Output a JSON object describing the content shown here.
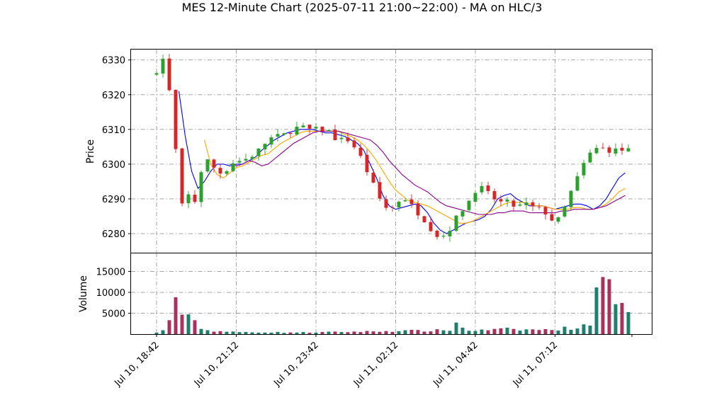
{
  "chart_data": {
    "type": "candlestick",
    "title": "MES 12-Minute Chart (2025-07-11 21:00~22:00) - MA on HLC/3",
    "price_panel": {
      "ylabel": "Price",
      "yticks": [
        6280,
        6290,
        6300,
        6310,
        6320,
        6330
      ],
      "ylim": [
        6274.5,
        6333
      ],
      "up_color": "#2ca02c",
      "down_color": "#d62728",
      "grid": true
    },
    "volume_panel": {
      "ylabel": "Volume",
      "yticks": [
        5000,
        10000,
        15000
      ],
      "ylim": [
        0,
        19500
      ],
      "up_color": "#1f7f6f",
      "down_color": "#a8325e"
    },
    "x_ticks": [
      "Jul 10, 18:42",
      "Jul 10, 21:12",
      "Jul 10, 23:42",
      "Jul 11, 02:12",
      "Jul 11, 04:42",
      "Jul 11, 07:12"
    ],
    "x_tick_bar_index": [
      0,
      12.5,
      25,
      37.5,
      50,
      62.5
    ],
    "bar_count": 75,
    "moving_averages": [
      {
        "color": "#0000ee",
        "points": [
          [
            3.5,
            6321
          ],
          [
            4.5,
            6308
          ],
          [
            5.5,
            6298
          ],
          [
            6.5,
            6293
          ],
          [
            7.5,
            6295
          ],
          [
            8.5,
            6298
          ],
          [
            9.5,
            6300
          ],
          [
            10.5,
            6300
          ],
          [
            11.5,
            6299.5
          ],
          [
            12.5,
            6300
          ],
          [
            13.5,
            6300
          ],
          [
            14.5,
            6301
          ],
          [
            15.5,
            6302
          ],
          [
            16.5,
            6304
          ],
          [
            17.5,
            6305.5
          ],
          [
            18.5,
            6307
          ],
          [
            19.5,
            6308
          ],
          [
            20.5,
            6309
          ],
          [
            21.5,
            6309.5
          ],
          [
            22.5,
            6310
          ],
          [
            23.5,
            6310
          ],
          [
            24.5,
            6310
          ],
          [
            25.5,
            6309.5
          ],
          [
            26.5,
            6309
          ],
          [
            27.5,
            6309
          ],
          [
            28.5,
            6308.5
          ],
          [
            29.5,
            6308
          ],
          [
            30.5,
            6307
          ],
          [
            31.5,
            6306
          ],
          [
            32.5,
            6304
          ],
          [
            33.5,
            6300
          ],
          [
            34.5,
            6296
          ],
          [
            35.5,
            6291
          ],
          [
            36.5,
            6288
          ],
          [
            37.5,
            6287
          ],
          [
            38.5,
            6287.5
          ],
          [
            39.5,
            6288
          ],
          [
            40.5,
            6288.5
          ],
          [
            41.5,
            6288
          ],
          [
            42.5,
            6286
          ],
          [
            43.5,
            6283
          ],
          [
            44.5,
            6281
          ],
          [
            45.5,
            6280
          ],
          [
            46.5,
            6281
          ],
          [
            47.5,
            6282
          ],
          [
            48.5,
            6283
          ],
          [
            49.5,
            6283.5
          ],
          [
            50.5,
            6284
          ],
          [
            51.5,
            6285
          ],
          [
            52.5,
            6287
          ],
          [
            53.5,
            6290
          ],
          [
            54.5,
            6291
          ],
          [
            55.5,
            6291.5
          ],
          [
            56.5,
            6290
          ],
          [
            57.5,
            6289
          ],
          [
            58.5,
            6288
          ],
          [
            59.5,
            6288
          ],
          [
            60.5,
            6288
          ],
          [
            61.5,
            6287.5
          ],
          [
            62.5,
            6287
          ],
          [
            63.5,
            6287.5
          ],
          [
            64.5,
            6288
          ],
          [
            65.5,
            6288.5
          ],
          [
            66.5,
            6288.5
          ],
          [
            67.5,
            6288
          ],
          [
            68.5,
            6287
          ],
          [
            69.5,
            6288
          ],
          [
            70.5,
            6290
          ],
          [
            71.5,
            6293
          ],
          [
            72.5,
            6296
          ],
          [
            73.5,
            6297.5
          ]
        ]
      },
      {
        "color": "#ffa500",
        "points": [
          [
            7.5,
            6307
          ],
          [
            8.5,
            6300
          ],
          [
            9.5,
            6297
          ],
          [
            10.5,
            6296
          ],
          [
            11.5,
            6297.5
          ],
          [
            12.5,
            6299
          ],
          [
            13.5,
            6299.5
          ],
          [
            14.5,
            6300.5
          ],
          [
            15.5,
            6301.5
          ],
          [
            16.5,
            6302.5
          ],
          [
            17.5,
            6303
          ],
          [
            18.5,
            6304.5
          ],
          [
            19.5,
            6306
          ],
          [
            20.5,
            6307
          ],
          [
            21.5,
            6308
          ],
          [
            22.5,
            6309
          ],
          [
            23.5,
            6309.5
          ],
          [
            24.5,
            6309.5
          ],
          [
            25.5,
            6309.5
          ],
          [
            26.5,
            6309.5
          ],
          [
            27.5,
            6309.5
          ],
          [
            28.5,
            6309.5
          ],
          [
            29.5,
            6308.5
          ],
          [
            30.5,
            6308
          ],
          [
            31.5,
            6307
          ],
          [
            32.5,
            6305.5
          ],
          [
            33.5,
            6303.5
          ],
          [
            34.5,
            6301
          ],
          [
            35.5,
            6298
          ],
          [
            36.5,
            6295
          ],
          [
            37.5,
            6292.5
          ],
          [
            38.5,
            6291
          ],
          [
            39.5,
            6289.5
          ],
          [
            40.5,
            6289
          ],
          [
            41.5,
            6288.5
          ],
          [
            42.5,
            6288
          ],
          [
            43.5,
            6287
          ],
          [
            44.5,
            6286
          ],
          [
            45.5,
            6285
          ],
          [
            46.5,
            6284
          ],
          [
            47.5,
            6283
          ],
          [
            48.5,
            6283
          ],
          [
            49.5,
            6283.5
          ],
          [
            50.5,
            6284.5
          ],
          [
            51.5,
            6285.5
          ],
          [
            52.5,
            6286.5
          ],
          [
            53.5,
            6287.5
          ],
          [
            54.5,
            6288.5
          ],
          [
            55.5,
            6289
          ],
          [
            56.5,
            6289
          ],
          [
            57.5,
            6289
          ],
          [
            58.5,
            6288.5
          ],
          [
            59.5,
            6288
          ],
          [
            60.5,
            6288
          ],
          [
            61.5,
            6287.5
          ],
          [
            62.5,
            6287
          ],
          [
            63.5,
            6287
          ],
          [
            64.5,
            6287
          ],
          [
            65.5,
            6287.5
          ],
          [
            66.5,
            6287.5
          ],
          [
            67.5,
            6287
          ],
          [
            68.5,
            6287
          ],
          [
            69.5,
            6287.5
          ],
          [
            70.5,
            6288.5
          ],
          [
            71.5,
            6290
          ],
          [
            72.5,
            6292
          ],
          [
            73.5,
            6293
          ]
        ]
      },
      {
        "color": "#8b008b",
        "points": [
          [
            11.5,
            6300
          ],
          [
            12.5,
            6299.5
          ],
          [
            13.5,
            6300
          ],
          [
            14.5,
            6301
          ],
          [
            15.5,
            6300.5
          ],
          [
            16.5,
            6299.5
          ],
          [
            17.5,
            6300
          ],
          [
            18.5,
            6301.5
          ],
          [
            19.5,
            6303
          ],
          [
            20.5,
            6304.5
          ],
          [
            21.5,
            6306
          ],
          [
            22.5,
            6307
          ],
          [
            23.5,
            6308
          ],
          [
            24.5,
            6309
          ],
          [
            25.5,
            6309.5
          ],
          [
            26.5,
            6309.5
          ],
          [
            27.5,
            6309.5
          ],
          [
            28.5,
            6309.5
          ],
          [
            29.5,
            6309
          ],
          [
            30.5,
            6308.5
          ],
          [
            31.5,
            6308
          ],
          [
            32.5,
            6307.5
          ],
          [
            33.5,
            6307
          ],
          [
            34.5,
            6305.5
          ],
          [
            35.5,
            6303.5
          ],
          [
            36.5,
            6301
          ],
          [
            37.5,
            6299
          ],
          [
            38.5,
            6297
          ],
          [
            39.5,
            6295.5
          ],
          [
            40.5,
            6294
          ],
          [
            41.5,
            6293
          ],
          [
            42.5,
            6292
          ],
          [
            43.5,
            6290.5
          ],
          [
            44.5,
            6289
          ],
          [
            45.5,
            6288
          ],
          [
            46.5,
            6287.5
          ],
          [
            47.5,
            6287
          ],
          [
            48.5,
            6286.5
          ],
          [
            49.5,
            6286
          ],
          [
            50.5,
            6285.5
          ],
          [
            51.5,
            6285.5
          ],
          [
            52.5,
            6285.5
          ],
          [
            53.5,
            6286
          ],
          [
            54.5,
            6286
          ],
          [
            55.5,
            6286.5
          ],
          [
            56.5,
            6286.5
          ],
          [
            57.5,
            6286.5
          ],
          [
            58.5,
            6286
          ],
          [
            59.5,
            6286
          ],
          [
            60.5,
            6286
          ],
          [
            61.5,
            6286
          ],
          [
            62.5,
            6286
          ],
          [
            63.5,
            6286.5
          ],
          [
            64.5,
            6286.5
          ],
          [
            65.5,
            6287
          ],
          [
            66.5,
            6287
          ],
          [
            67.5,
            6287
          ],
          [
            68.5,
            6287
          ],
          [
            69.5,
            6287.5
          ],
          [
            70.5,
            6288
          ],
          [
            71.5,
            6289
          ],
          [
            72.5,
            6290
          ],
          [
            73.5,
            6291
          ]
        ]
      }
    ],
    "ohlc_anchors": [
      [
        0,
        6327
      ],
      [
        0.5,
        6331
      ],
      [
        1.2,
        6330
      ],
      [
        2,
        6321
      ],
      [
        2.8,
        6316
      ],
      [
        3.1,
        6298
      ],
      [
        3.5,
        6292
      ],
      [
        4,
        6288
      ],
      [
        4.6,
        6294
      ],
      [
        5,
        6291
      ],
      [
        5.6,
        6284
      ],
      [
        6.5,
        6296
      ],
      [
        7,
        6298
      ],
      [
        7.5,
        6302
      ],
      [
        8.5,
        6300
      ],
      [
        9.5,
        6298
      ],
      [
        10.5,
        6297
      ],
      [
        11.5,
        6300
      ],
      [
        12.5,
        6301
      ],
      [
        13.5,
        6301
      ],
      [
        14.5,
        6302
      ],
      [
        15.5,
        6303
      ],
      [
        16.5,
        6305
      ],
      [
        17.5,
        6307
      ],
      [
        18.5,
        6308
      ],
      [
        19.5,
        6308
      ],
      [
        20.5,
        6309
      ],
      [
        21.5,
        6310
      ],
      [
        22.5,
        6311
      ],
      [
        23.5,
        6310
      ],
      [
        24.5,
        6310
      ],
      [
        25.5,
        6310
      ],
      [
        26.5,
        6310
      ],
      [
        27.5,
        6309
      ],
      [
        28.5,
        6306
      ],
      [
        29.5,
        6308
      ],
      [
        30.5,
        6306
      ],
      [
        31.5,
        6304
      ],
      [
        32.5,
        6300
      ],
      [
        33.5,
        6296
      ],
      [
        34.5,
        6292
      ],
      [
        35.5,
        6288
      ],
      [
        36.5,
        6287
      ],
      [
        37.5,
        6288
      ],
      [
        38.5,
        6291
      ],
      [
        39.5,
        6289
      ],
      [
        40.5,
        6287
      ],
      [
        41.5,
        6285
      ],
      [
        42.5,
        6283
      ],
      [
        43.5,
        6280
      ],
      [
        44.5,
        6279
      ],
      [
        45.5,
        6280
      ],
      [
        46.5,
        6283
      ],
      [
        47.5,
        6286
      ],
      [
        48.5,
        6288
      ],
      [
        49.5,
        6291
      ],
      [
        50.5,
        6294
      ],
      [
        51.5,
        6292
      ],
      [
        52.5,
        6291
      ],
      [
        53.5,
        6289
      ],
      [
        54.5,
        6289
      ],
      [
        55.5,
        6289
      ],
      [
        56.5,
        6287
      ],
      [
        57.5,
        6289
      ],
      [
        58.5,
        6288
      ],
      [
        59.5,
        6287
      ],
      [
        60.5,
        6287
      ],
      [
        61.5,
        6285
      ],
      [
        62.5,
        6283
      ],
      [
        63.5,
        6285
      ],
      [
        64.5,
        6290
      ],
      [
        65.5,
        6294
      ],
      [
        66.5,
        6298
      ],
      [
        67.5,
        6302
      ],
      [
        68.5,
        6304
      ],
      [
        69.5,
        6305
      ],
      [
        70.5,
        6304
      ]
    ],
    "volume_anchors": [
      [
        0,
        300
      ],
      [
        1,
        900
      ],
      [
        1.5,
        2200
      ],
      [
        2,
        3600
      ],
      [
        2.5,
        6500
      ],
      [
        3,
        9000
      ],
      [
        3.3,
        8000
      ],
      [
        3.8,
        4200
      ],
      [
        4.5,
        2500
      ],
      [
        5,
        3800
      ],
      [
        5.5,
        5200
      ],
      [
        6,
        4200
      ],
      [
        6.5,
        1800
      ],
      [
        7,
        1200
      ],
      [
        8,
        900
      ],
      [
        10,
        700
      ],
      [
        12,
        500
      ],
      [
        14,
        450
      ],
      [
        16,
        450
      ],
      [
        18,
        450
      ],
      [
        20,
        400
      ],
      [
        22,
        400
      ],
      [
        24,
        400
      ],
      [
        26,
        450
      ],
      [
        28,
        500
      ],
      [
        30,
        550
      ],
      [
        32,
        600
      ],
      [
        34,
        650
      ],
      [
        36,
        700
      ],
      [
        38,
        800
      ],
      [
        40,
        800
      ],
      [
        42,
        800
      ],
      [
        44,
        900
      ],
      [
        46,
        1000
      ],
      [
        47,
        2600
      ],
      [
        48,
        1500
      ],
      [
        49,
        900
      ],
      [
        51,
        900
      ],
      [
        53,
        1100
      ],
      [
        55,
        1200
      ],
      [
        57,
        1000
      ],
      [
        59,
        1100
      ],
      [
        61,
        1000
      ],
      [
        63,
        1200
      ],
      [
        64,
        1400
      ],
      [
        66,
        1500
      ],
      [
        67,
        2000
      ],
      [
        68,
        2800
      ],
      [
        68.8,
        17800
      ],
      [
        69.2,
        9000
      ],
      [
        69.6,
        9500
      ],
      [
        70,
        11000
      ],
      [
        70.6,
        16800
      ],
      [
        71,
        12000
      ],
      [
        71.5,
        7500
      ],
      [
        72,
        6000
      ],
      [
        72.6,
        7000
      ],
      [
        73.2,
        5500
      ],
      [
        73.8,
        6800
      ]
    ]
  }
}
